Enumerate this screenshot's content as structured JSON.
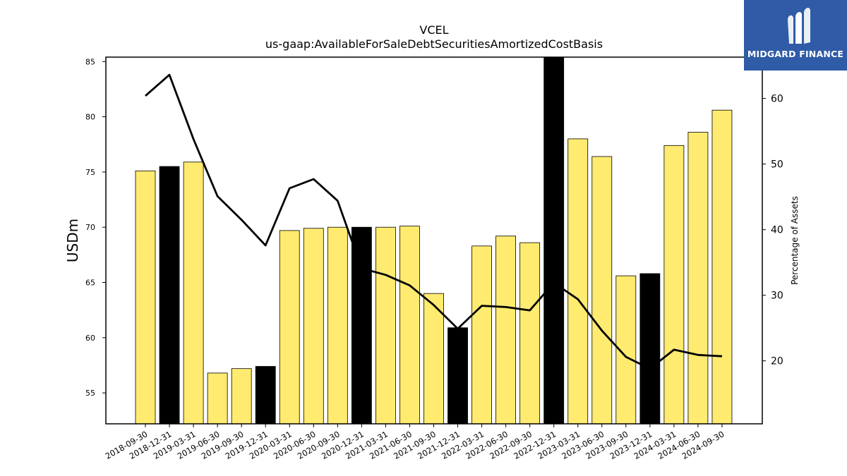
{
  "logo": {
    "text": "MIDGARD FINANCE",
    "background": "#2f5ba7"
  },
  "chart_data": {
    "type": "bar",
    "title": "VCEL",
    "subtitle": "us-gaap:AvailableForSaleDebtSecuritiesAmortizedCostBasis",
    "ylabel": "USDm",
    "y2label": "Percentage of Assets",
    "ylim": [
      52.2,
      85.4
    ],
    "y2lim": [
      10.4,
      66.3
    ],
    "yticks": [
      55,
      60,
      65,
      70,
      75,
      80,
      85
    ],
    "y2ticks": [
      20,
      30,
      40,
      50,
      60
    ],
    "grid": false,
    "categories": [
      "2018-09-30",
      "2018-12-31",
      "2019-03-31",
      "2019-06-30",
      "2019-09-30",
      "2019-12-31",
      "2020-03-31",
      "2020-06-30",
      "2020-09-30",
      "2020-12-31",
      "2021-03-31",
      "2021-06-30",
      "2021-09-30",
      "2021-12-31",
      "2022-03-31",
      "2022-06-30",
      "2022-09-30",
      "2022-12-31",
      "2023-03-31",
      "2023-06-30",
      "2023-09-30",
      "2023-12-31",
      "2024-03-31",
      "2024-06-30",
      "2024-09-30"
    ],
    "series": [
      {
        "type": "bar",
        "values": [
          75.1,
          75.5,
          75.9,
          56.8,
          57.2,
          57.4,
          69.7,
          69.9,
          70.0,
          70.0,
          70.0,
          70.1,
          64.0,
          60.9,
          68.3,
          69.2,
          68.6,
          85.4,
          78.0,
          76.4,
          65.6,
          65.8,
          77.4,
          78.6,
          80.6
        ],
        "colors": [
          "#ffeb70",
          "#000000",
          "#ffeb70",
          "#ffeb70",
          "#ffeb70",
          "#000000",
          "#ffeb70",
          "#ffeb70",
          "#ffeb70",
          "#000000",
          "#ffeb70",
          "#ffeb70",
          "#ffeb70",
          "#000000",
          "#ffeb70",
          "#ffeb70",
          "#ffeb70",
          "#000000",
          "#ffeb70",
          "#ffeb70",
          "#ffeb70",
          "#000000",
          "#ffeb70",
          "#ffeb70",
          "#ffeb70"
        ]
      },
      {
        "type": "line",
        "axis": "secondary",
        "color": "#000000",
        "values": [
          60.4,
          63.6,
          53.8,
          45.1,
          41.5,
          37.6,
          46.3,
          47.7,
          44.4,
          34.1,
          33.1,
          31.5,
          28.5,
          24.9,
          28.4,
          28.2,
          27.7,
          31.9,
          29.4,
          24.6,
          20.6,
          18.8,
          21.7,
          20.9,
          20.7
        ]
      }
    ]
  }
}
